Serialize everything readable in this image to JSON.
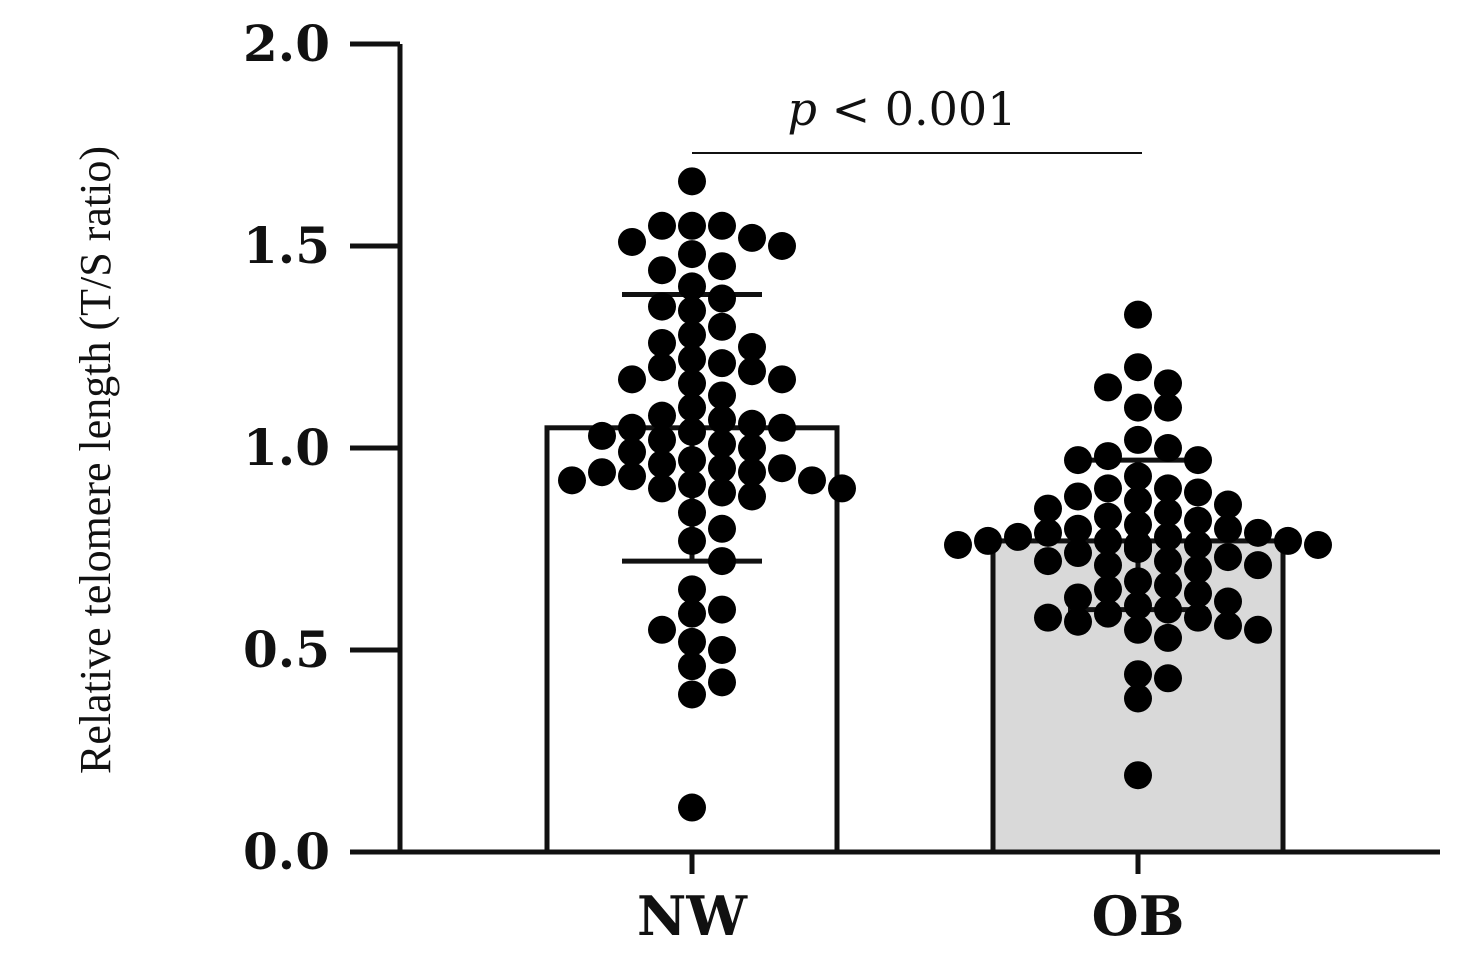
{
  "chart_data": {
    "type": "bar",
    "ylabel": "Relative telomere length (T/S ratio)",
    "ylim": [
      0,
      2.0
    ],
    "yticks": [
      "0.0",
      "0.5",
      "1.0",
      "1.5",
      "2.0"
    ],
    "ytick_values": [
      0,
      0.5,
      1.0,
      1.5,
      2.0
    ],
    "categories": [
      "NW",
      "OB"
    ],
    "values": [
      1.05,
      0.77
    ],
    "error_low": [
      0.72,
      0.6
    ],
    "error_high": [
      1.38,
      0.97
    ],
    "bar_colors": [
      "#ffffff",
      "#d9d9d9"
    ],
    "annotation": {
      "italic": "p",
      "text": " < 0.001"
    },
    "points": [
      [
        1.66,
        1.55,
        1.55,
        1.55,
        1.52,
        1.51,
        1.5,
        1.48,
        1.45,
        1.44,
        1.4,
        1.37,
        1.35,
        1.34,
        1.3,
        1.28,
        1.26,
        1.25,
        1.22,
        1.21,
        1.2,
        1.19,
        1.17,
        1.17,
        1.16,
        1.13,
        1.1,
        1.08,
        1.07,
        1.06,
        1.05,
        1.05,
        1.04,
        1.03,
        1.02,
        1.01,
        1.0,
        0.99,
        0.97,
        0.96,
        0.95,
        0.95,
        0.94,
        0.94,
        0.93,
        0.92,
        0.92,
        0.91,
        0.9,
        0.9,
        0.89,
        0.88,
        0.84,
        0.8,
        0.77,
        0.72,
        0.65,
        0.6,
        0.59,
        0.55,
        0.52,
        0.5,
        0.46,
        0.42,
        0.39,
        0.11
      ],
      [
        1.33,
        1.2,
        1.16,
        1.15,
        1.1,
        1.1,
        1.02,
        1.0,
        0.98,
        0.97,
        0.97,
        0.93,
        0.9,
        0.9,
        0.89,
        0.88,
        0.87,
        0.86,
        0.85,
        0.84,
        0.83,
        0.82,
        0.81,
        0.8,
        0.8,
        0.79,
        0.79,
        0.78,
        0.78,
        0.77,
        0.77,
        0.77,
        0.76,
        0.76,
        0.76,
        0.76,
        0.75,
        0.75,
        0.74,
        0.73,
        0.72,
        0.72,
        0.71,
        0.71,
        0.7,
        0.67,
        0.66,
        0.65,
        0.64,
        0.63,
        0.62,
        0.61,
        0.6,
        0.59,
        0.58,
        0.58,
        0.57,
        0.56,
        0.55,
        0.55,
        0.53,
        0.44,
        0.43,
        0.38,
        0.19
      ]
    ]
  }
}
